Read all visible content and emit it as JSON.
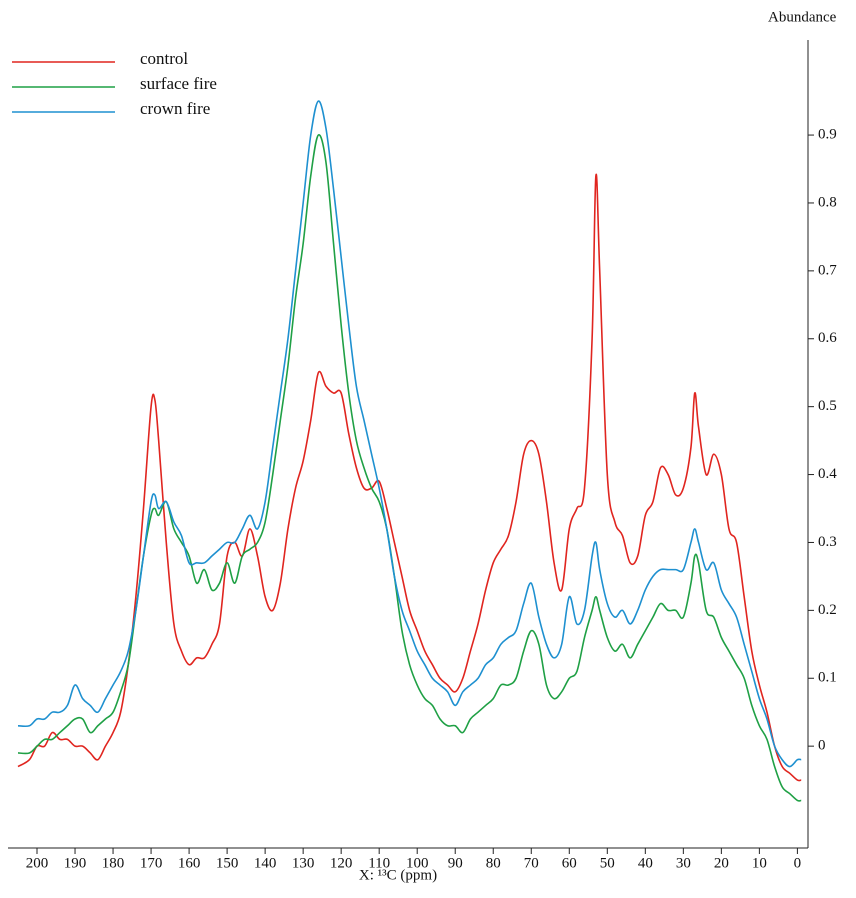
{
  "chart_data": {
    "type": "line",
    "x_label": "X: ¹³C (ppm)",
    "y_label": "Abundance",
    "xlim": [
      205,
      -2
    ],
    "ylim": [
      -0.15,
      1.04
    ],
    "xticks": [
      200,
      190,
      180,
      170,
      160,
      150,
      140,
      130,
      120,
      110,
      100,
      90,
      80,
      70,
      60,
      50,
      40,
      30,
      20,
      10,
      0
    ],
    "yticks": [
      0,
      0.1,
      0.2,
      0.3,
      0.4,
      0.5,
      0.6,
      0.7,
      0.8,
      0.9
    ],
    "legend": "upper left",
    "x": [
      205,
      202,
      200,
      198,
      196,
      194,
      192,
      190,
      188,
      186,
      184,
      182,
      180,
      178,
      176,
      174,
      172,
      170,
      169,
      168,
      166,
      164,
      162,
      160,
      158,
      156,
      154,
      152,
      150,
      148,
      146,
      144,
      142,
      140,
      138,
      136,
      134,
      132,
      130,
      128,
      126,
      124,
      122,
      120,
      118,
      116,
      114,
      112,
      110,
      108,
      106,
      104,
      102,
      100,
      98,
      96,
      94,
      92,
      90,
      88,
      86,
      84,
      82,
      80,
      78,
      76,
      74,
      72,
      70,
      68,
      66,
      64,
      62,
      60,
      58,
      56,
      54,
      53,
      52,
      50,
      48,
      46,
      44,
      42,
      40,
      38,
      36,
      34,
      32,
      30,
      28,
      27,
      26,
      24,
      22,
      20,
      18,
      16,
      14,
      12,
      10,
      8,
      6,
      4,
      2,
      0,
      -1
    ],
    "series": [
      {
        "name": "control",
        "color": "#e0251f",
        "values": [
          -0.03,
          -0.02,
          0.0,
          0.0,
          0.02,
          0.01,
          0.01,
          0.0,
          0.0,
          -0.01,
          -0.02,
          0.0,
          0.02,
          0.05,
          0.12,
          0.22,
          0.35,
          0.5,
          0.51,
          0.45,
          0.3,
          0.18,
          0.14,
          0.12,
          0.13,
          0.13,
          0.15,
          0.18,
          0.28,
          0.3,
          0.28,
          0.32,
          0.28,
          0.22,
          0.2,
          0.24,
          0.32,
          0.38,
          0.42,
          0.48,
          0.55,
          0.53,
          0.52,
          0.52,
          0.46,
          0.41,
          0.38,
          0.38,
          0.39,
          0.35,
          0.3,
          0.25,
          0.2,
          0.17,
          0.14,
          0.12,
          0.1,
          0.09,
          0.08,
          0.1,
          0.14,
          0.18,
          0.23,
          0.27,
          0.29,
          0.31,
          0.36,
          0.43,
          0.45,
          0.43,
          0.36,
          0.27,
          0.23,
          0.32,
          0.35,
          0.38,
          0.6,
          0.84,
          0.7,
          0.4,
          0.33,
          0.31,
          0.27,
          0.28,
          0.34,
          0.36,
          0.41,
          0.4,
          0.37,
          0.38,
          0.44,
          0.52,
          0.47,
          0.4,
          0.43,
          0.4,
          0.32,
          0.3,
          0.22,
          0.14,
          0.09,
          0.05,
          0.0,
          -0.03,
          -0.04,
          -0.05,
          -0.05
        ]
      },
      {
        "name": "surface fire",
        "color": "#1fa045",
        "values": [
          -0.01,
          -0.01,
          0.0,
          0.01,
          0.01,
          0.02,
          0.03,
          0.04,
          0.04,
          0.02,
          0.03,
          0.04,
          0.05,
          0.08,
          0.12,
          0.2,
          0.28,
          0.34,
          0.35,
          0.34,
          0.36,
          0.32,
          0.3,
          0.28,
          0.24,
          0.26,
          0.23,
          0.24,
          0.27,
          0.24,
          0.28,
          0.29,
          0.3,
          0.33,
          0.4,
          0.48,
          0.56,
          0.66,
          0.74,
          0.84,
          0.9,
          0.86,
          0.74,
          0.62,
          0.52,
          0.45,
          0.41,
          0.38,
          0.36,
          0.32,
          0.25,
          0.17,
          0.12,
          0.09,
          0.07,
          0.06,
          0.04,
          0.03,
          0.03,
          0.02,
          0.04,
          0.05,
          0.06,
          0.07,
          0.09,
          0.09,
          0.1,
          0.14,
          0.17,
          0.15,
          0.09,
          0.07,
          0.08,
          0.1,
          0.11,
          0.16,
          0.2,
          0.22,
          0.2,
          0.16,
          0.14,
          0.15,
          0.13,
          0.15,
          0.17,
          0.19,
          0.21,
          0.2,
          0.2,
          0.19,
          0.24,
          0.28,
          0.27,
          0.2,
          0.19,
          0.16,
          0.14,
          0.12,
          0.1,
          0.06,
          0.03,
          0.01,
          -0.03,
          -0.06,
          -0.07,
          -0.08,
          -0.08
        ]
      },
      {
        "name": "crown fire",
        "color": "#1e90d0",
        "values": [
          0.03,
          0.03,
          0.04,
          0.04,
          0.05,
          0.05,
          0.06,
          0.09,
          0.07,
          0.06,
          0.05,
          0.07,
          0.09,
          0.11,
          0.14,
          0.2,
          0.28,
          0.36,
          0.37,
          0.35,
          0.36,
          0.33,
          0.31,
          0.27,
          0.27,
          0.27,
          0.28,
          0.29,
          0.3,
          0.3,
          0.32,
          0.34,
          0.32,
          0.36,
          0.44,
          0.52,
          0.6,
          0.7,
          0.8,
          0.9,
          0.95,
          0.91,
          0.82,
          0.72,
          0.62,
          0.53,
          0.48,
          0.43,
          0.38,
          0.32,
          0.25,
          0.2,
          0.17,
          0.14,
          0.12,
          0.1,
          0.09,
          0.08,
          0.06,
          0.08,
          0.09,
          0.1,
          0.12,
          0.13,
          0.15,
          0.16,
          0.17,
          0.21,
          0.24,
          0.19,
          0.15,
          0.13,
          0.15,
          0.22,
          0.18,
          0.2,
          0.28,
          0.3,
          0.26,
          0.21,
          0.19,
          0.2,
          0.18,
          0.2,
          0.23,
          0.25,
          0.26,
          0.26,
          0.26,
          0.26,
          0.3,
          0.32,
          0.3,
          0.26,
          0.27,
          0.23,
          0.21,
          0.19,
          0.15,
          0.11,
          0.07,
          0.04,
          0.0,
          -0.02,
          -0.03,
          -0.02,
          -0.02
        ]
      }
    ]
  }
}
